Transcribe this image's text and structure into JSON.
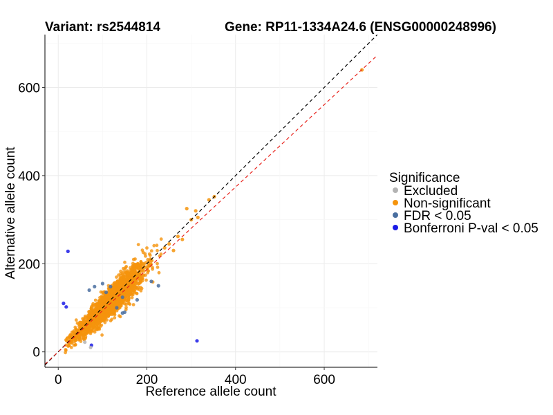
{
  "header": {
    "variant_label": "Variant: rs2544814",
    "gene_label": "Gene: RP11-1334A24.6 (ENSG00000248996)"
  },
  "chart_data": {
    "type": "scatter",
    "title": "",
    "xlabel": "Reference allele count",
    "ylabel": "Alternative allele count",
    "xlim": [
      -30,
      720
    ],
    "ylim": [
      -35,
      720
    ],
    "x_ticks": [
      0,
      200,
      400,
      600
    ],
    "y_ticks": [
      0,
      200,
      400,
      600
    ],
    "grid": true,
    "legend": {
      "title": "Significance",
      "placement": "right",
      "entries": [
        {
          "label": "Excluded",
          "color": "#b3b3b3"
        },
        {
          "label": "Non-significant",
          "color": "#f5940c"
        },
        {
          "label": "FDR < 0.05",
          "color": "#4a6fa0"
        },
        {
          "label": "Bonferroni P-val < 0.05",
          "color": "#1a1ae6"
        }
      ]
    },
    "reference_lines": [
      {
        "name": "identity",
        "slope": 1,
        "intercept": 0,
        "color": "#000000",
        "style": "dashed"
      },
      {
        "name": "fit",
        "slope": 0.935,
        "intercept": 0,
        "color": "#e8231c",
        "style": "dashed"
      }
    ],
    "series": [
      {
        "name": "Non-significant",
        "color": "#f5940c",
        "cluster": {
          "count": 2200,
          "x_center": 118,
          "x_spread": 38,
          "x_min": 10,
          "x_max": 280,
          "slope": 0.97,
          "spread": 9
        },
        "points": [
          [
            685,
            640
          ],
          [
            352,
            352
          ],
          [
            340,
            345
          ],
          [
            310,
            320
          ],
          [
            300,
            300
          ],
          [
            290,
            325
          ],
          [
            280,
            255
          ],
          [
            270,
            262
          ],
          [
            315,
            305
          ],
          [
            250,
            245
          ],
          [
            240,
            236
          ],
          [
            260,
            230
          ]
        ]
      },
      {
        "name": "FDR < 0.05",
        "color": "#4a6fa0",
        "points": [
          [
            82,
            148
          ],
          [
            100,
            155
          ],
          [
            118,
            148
          ],
          [
            210,
            160
          ],
          [
            226,
            150
          ],
          [
            178,
            118
          ],
          [
            150,
            90
          ],
          [
            145,
            88
          ],
          [
            132,
            100
          ],
          [
            145,
            124
          ],
          [
            70,
            140
          ],
          [
            108,
            135
          ]
        ]
      },
      {
        "name": "Bonferroni P-val < 0.05",
        "color": "#1a1ae6",
        "points": [
          [
            22,
            228
          ],
          [
            12,
            110
          ],
          [
            18,
            102
          ],
          [
            75,
            15
          ],
          [
            313,
            25
          ]
        ]
      },
      {
        "name": "Excluded",
        "color": "#b3b3b3",
        "points": [
          [
            73,
            10
          ],
          [
            60,
            22
          ]
        ]
      }
    ]
  }
}
